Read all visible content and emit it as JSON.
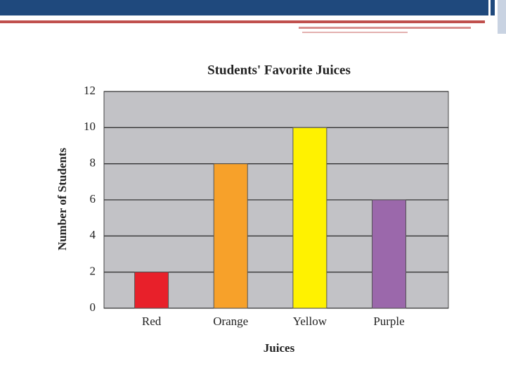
{
  "chart_data": {
    "type": "bar",
    "title": "Students' Favorite Juices",
    "x_label": "Juices",
    "y_label": "Number of Students",
    "categories": [
      "Red",
      "Orange",
      "Yellow",
      "Purple"
    ],
    "values": [
      2,
      8,
      10,
      6
    ],
    "colors": [
      "#e8202a",
      "#f7a12a",
      "#fff200",
      "#9b68ab"
    ],
    "ylim": [
      0,
      12
    ],
    "yticks": [
      0,
      2,
      4,
      6,
      8,
      10,
      12
    ],
    "grid": true
  }
}
